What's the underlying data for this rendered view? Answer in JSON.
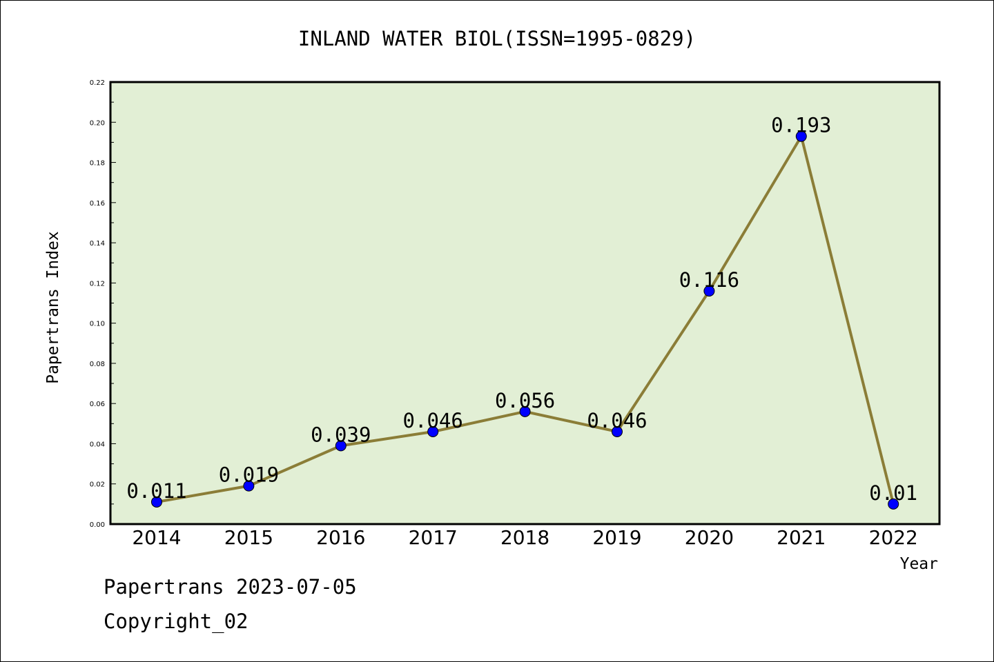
{
  "chart_data": {
    "type": "line",
    "title": "INLAND WATER BIOL(ISSN=1995-0829)",
    "xlabel": "Year",
    "ylabel": "Papertrans Index",
    "categories": [
      "2014",
      "2015",
      "2016",
      "2017",
      "2018",
      "2019",
      "2020",
      "2021",
      "2022"
    ],
    "values": [
      0.011,
      0.019,
      0.039,
      0.046,
      0.056,
      0.046,
      0.116,
      0.193,
      0.01
    ],
    "data_labels": [
      "0.011",
      "0.019",
      "0.039",
      "0.046",
      "0.056",
      "0.046",
      "0.116",
      "0.193",
      "0.01"
    ],
    "ylim": [
      0,
      0.22
    ],
    "yticks": [
      "0.00",
      "0.02",
      "0.04",
      "0.06",
      "0.08",
      "0.10",
      "0.12",
      "0.14",
      "0.16",
      "0.18",
      "0.20",
      "0.22"
    ],
    "grid": false,
    "colors": {
      "plot_background": "#e2efd5",
      "line": "#8b7d37",
      "marker": "#0000ff"
    }
  },
  "footer": {
    "line1": "Papertrans 2023-07-05",
    "line2": "Copyright_02"
  }
}
